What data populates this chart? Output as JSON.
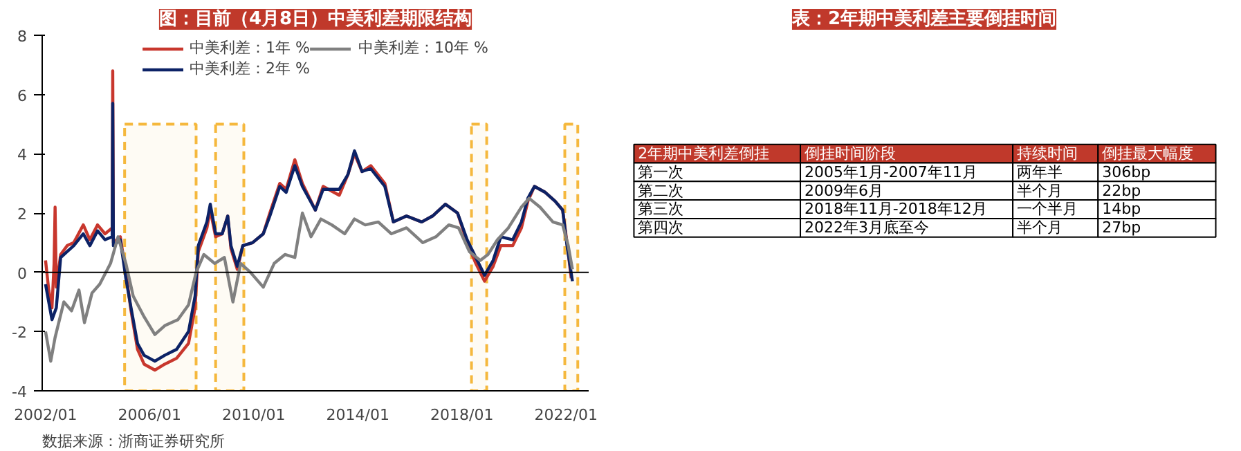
{
  "chart_data": [
    {
      "type": "line",
      "title": "图：目前（4月8日）中美利差期限结构",
      "xlim": [
        "2001-11-15",
        "2022-11-15"
      ],
      "ylim": [
        -4,
        8
      ],
      "xticks": [
        {
          "value": "2002-01",
          "label": "2002/01"
        },
        {
          "value": "2006-01",
          "label": "2006/01"
        },
        {
          "value": "2010-01",
          "label": "2010/01"
        },
        {
          "value": "2014-01",
          "label": "2014/01"
        },
        {
          "value": "2018-01",
          "label": "2018/01"
        },
        {
          "value": "2022-01",
          "label": "2022/01"
        }
      ],
      "yticks": [
        -4,
        -2,
        0,
        2,
        4,
        6,
        8
      ],
      "grid": false,
      "legend": "top",
      "series": [
        {
          "name": "中美利差：1年 %",
          "color": "#c8372d",
          "x": [
            "2002-01-01",
            "2002-02-15",
            "2002-04-01",
            "2002-05-01",
            "2002-05-15",
            "2002-06-01",
            "2002-08-01",
            "2002-11-01",
            "2003-02-01",
            "2003-06-15",
            "2003-09-15",
            "2004-01-01",
            "2004-04-15",
            "2004-07-25",
            "2004-08-01",
            "2004-08-10",
            "2004-11-15",
            "2005-02-01",
            "2005-04-15",
            "2005-07-15",
            "2005-10-15",
            "2006-03-15",
            "2006-08-01",
            "2007-01-15",
            "2007-07-01",
            "2007-10-01",
            "2007-11-15",
            "2008-03-15",
            "2008-05-01",
            "2008-07-15",
            "2008-10-15",
            "2009-01-01",
            "2009-02-15",
            "2009-05-15",
            "2009-08-01",
            "2009-12-15",
            "2010-05-15",
            "2010-08-15",
            "2011-01-01",
            "2011-04-01",
            "2011-08-01",
            "2011-11-15",
            "2012-05-15",
            "2012-09-01",
            "2013-04-15",
            "2013-08-15",
            "2013-11-15",
            "2014-03-01",
            "2014-07-01",
            "2015-01-15",
            "2015-05-15",
            "2015-11-15",
            "2016-06-15",
            "2016-11-15",
            "2017-05-15",
            "2017-11-01",
            "2018-03-15",
            "2018-07-15",
            "2018-11-15",
            "2019-03-15",
            "2019-07-01",
            "2019-12-15",
            "2020-04-15",
            "2020-07-15",
            "2020-10-15",
            "2021-03-15",
            "2021-08-01",
            "2021-11-15",
            "2022-01-15",
            "2022-03-15"
          ],
          "values": [
            0.4,
            -0.6,
            -1.2,
            0.3,
            2.2,
            -0.5,
            0.6,
            0.9,
            1.0,
            1.6,
            1.1,
            1.6,
            1.3,
            1.5,
            6.8,
            1.0,
            1.2,
            0.0,
            -1.3,
            -2.6,
            -3.1,
            -3.3,
            -3.1,
            -2.9,
            -2.4,
            -1.2,
            0.7,
            1.5,
            2.1,
            1.2,
            1.3,
            1.9,
            0.8,
            0.1,
            0.9,
            1.0,
            1.3,
            2.0,
            3.0,
            2.8,
            3.8,
            3.0,
            2.1,
            2.9,
            2.6,
            3.3,
            4.0,
            3.4,
            3.6,
            3.0,
            1.7,
            1.9,
            1.7,
            1.9,
            2.3,
            2.0,
            1.0,
            0.3,
            -0.3,
            0.2,
            0.9,
            0.9,
            1.5,
            2.4,
            2.9,
            2.7,
            2.4,
            2.1,
            1.0,
            -0.2
          ]
        },
        {
          "name": "中美利差：2年 %",
          "color": "#0c2266",
          "x": [
            "2002-01-01",
            "2002-02-15",
            "2002-04-01",
            "2002-06-01",
            "2002-08-01",
            "2002-11-01",
            "2003-02-01",
            "2003-06-15",
            "2003-09-15",
            "2004-01-01",
            "2004-04-15",
            "2004-07-25",
            "2004-08-01",
            "2004-08-10",
            "2004-11-15",
            "2005-02-01",
            "2005-04-15",
            "2005-07-15",
            "2005-10-15",
            "2006-03-15",
            "2006-08-01",
            "2007-01-15",
            "2007-07-01",
            "2007-10-01",
            "2007-11-15",
            "2008-03-15",
            "2008-05-01",
            "2008-07-15",
            "2008-10-15",
            "2009-01-01",
            "2009-02-15",
            "2009-05-15",
            "2009-08-01",
            "2009-12-15",
            "2010-05-15",
            "2010-08-15",
            "2011-01-01",
            "2011-04-01",
            "2011-08-01",
            "2011-11-15",
            "2012-05-15",
            "2012-09-01",
            "2013-04-15",
            "2013-08-15",
            "2013-11-15",
            "2014-03-01",
            "2014-07-01",
            "2015-01-15",
            "2015-05-15",
            "2015-11-15",
            "2016-06-15",
            "2016-11-15",
            "2017-05-15",
            "2017-11-01",
            "2018-03-15",
            "2018-07-15",
            "2018-11-15",
            "2019-03-15",
            "2019-07-01",
            "2019-12-15",
            "2020-04-15",
            "2020-07-15",
            "2020-10-15",
            "2021-03-15",
            "2021-08-01",
            "2021-11-15",
            "2022-01-15",
            "2022-04-01"
          ],
          "values": [
            -0.4,
            -1.0,
            -1.6,
            -1.2,
            0.5,
            0.7,
            0.9,
            1.3,
            0.9,
            1.4,
            1.1,
            1.2,
            5.7,
            0.9,
            1.1,
            -0.2,
            -1.2,
            -2.4,
            -2.8,
            -3.0,
            -2.8,
            -2.6,
            -2.0,
            -0.8,
            0.9,
            1.7,
            2.3,
            1.3,
            1.3,
            1.9,
            0.9,
            0.2,
            0.9,
            1.0,
            1.3,
            1.9,
            2.9,
            2.7,
            3.6,
            2.9,
            2.1,
            2.8,
            2.8,
            3.3,
            4.1,
            3.4,
            3.5,
            2.9,
            1.7,
            1.9,
            1.7,
            1.9,
            2.3,
            2.0,
            1.1,
            0.5,
            -0.1,
            0.4,
            1.2,
            1.1,
            1.7,
            2.5,
            2.9,
            2.7,
            2.4,
            2.1,
            0.9,
            -0.3
          ]
        },
        {
          "name": "中美利差：10年 %",
          "color": "#808080",
          "x": [
            "2002-01-01",
            "2002-03-15",
            "2002-05-15",
            "2002-09-15",
            "2003-01-01",
            "2003-04-15",
            "2003-07-01",
            "2003-10-15",
            "2004-02-01",
            "2004-07-01",
            "2004-10-15",
            "2005-02-01",
            "2005-05-15",
            "2005-10-15",
            "2006-03-15",
            "2006-08-01",
            "2007-02-01",
            "2007-07-01",
            "2007-10-15",
            "2008-02-01",
            "2008-07-01",
            "2008-11-15",
            "2009-03-15",
            "2009-07-01",
            "2009-11-15",
            "2010-05-15",
            "2010-10-15",
            "2011-03-15",
            "2011-08-01",
            "2011-11-15",
            "2012-03-15",
            "2012-08-01",
            "2013-01-01",
            "2013-07-01",
            "2013-11-15",
            "2014-04-15",
            "2014-10-15",
            "2015-04-15",
            "2015-11-15",
            "2016-07-01",
            "2017-01-01",
            "2017-07-01",
            "2017-11-15",
            "2018-04-15",
            "2018-09-15",
            "2019-01-01",
            "2019-05-15",
            "2019-10-15",
            "2020-04-15",
            "2020-08-01",
            "2021-01-01",
            "2021-07-01",
            "2021-11-15",
            "2022-02-01",
            "2022-04-01"
          ],
          "values": [
            -2.0,
            -3.0,
            -2.2,
            -1.0,
            -1.3,
            -0.6,
            -1.7,
            -0.7,
            -0.4,
            0.3,
            1.2,
            0.3,
            -0.8,
            -1.5,
            -2.1,
            -1.8,
            -1.6,
            -1.1,
            0.0,
            0.6,
            0.3,
            0.5,
            -1.0,
            0.3,
            0.0,
            -0.5,
            0.3,
            0.6,
            0.5,
            2.0,
            1.2,
            1.8,
            1.6,
            1.3,
            1.8,
            1.6,
            1.7,
            1.3,
            1.5,
            1.0,
            1.2,
            1.6,
            1.5,
            0.7,
            0.4,
            0.6,
            1.1,
            1.5,
            2.2,
            2.5,
            2.2,
            1.7,
            1.6,
            0.9,
            0.1
          ]
        }
      ],
      "ref_lines": [
        {
          "axis": "y",
          "value": 0,
          "color": "#000000"
        }
      ],
      "bands": [
        {
          "axis": "x",
          "from": "2005-01-15",
          "to": "2007-10-15",
          "color": "#f5b83d"
        },
        {
          "axis": "x",
          "from": "2008-07-15",
          "to": "2009-08-15",
          "color": "#f5b83d"
        },
        {
          "axis": "x",
          "from": "2018-05-15",
          "to": "2018-12-15",
          "color": "#f5b83d"
        },
        {
          "axis": "x",
          "from": "2021-12-15",
          "to": "2022-06-15",
          "color": "#f5b83d"
        }
      ],
      "annotations": [
        "数据来源：浙商证券研究所"
      ]
    },
    {
      "type": "other",
      "title": "表：2年期中美利差主要倒挂时间",
      "categories": [
        "2年期中美利差倒挂",
        "倒挂时间阶段",
        "持续时间",
        "倒挂最大幅度"
      ],
      "y_categories": [
        "第一次",
        "第二次",
        "第三次",
        "第四次"
      ],
      "cell_labels": [
        [
          "2005年1月-2007年11月",
          "两年半",
          "306bp"
        ],
        [
          "2009年6月",
          "半个月",
          "22bp"
        ],
        [
          "2018年11月-2018年12月",
          "一个半月",
          "14bp"
        ],
        [
          "2022年3月底至今",
          "半个月",
          "27bp"
        ]
      ]
    }
  ]
}
